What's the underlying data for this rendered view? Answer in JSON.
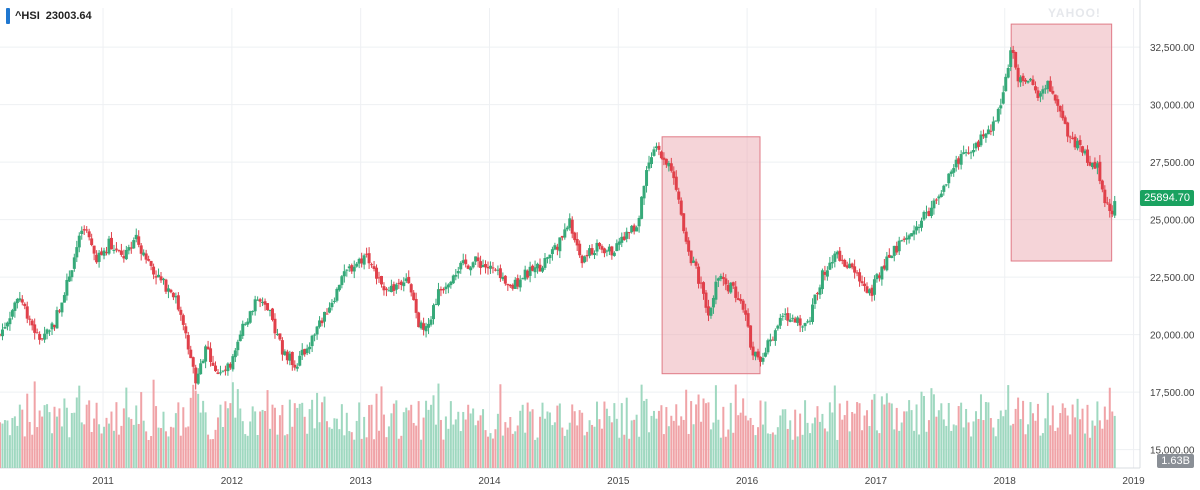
{
  "legend": {
    "symbol": "^HSI",
    "value": "23003.64",
    "color": "#1f77d0"
  },
  "current_price_label": "25894.70",
  "volume_label": "1.63B",
  "watermark": "YAHOO!",
  "colors": {
    "up": "#36a979",
    "down": "#e0404a",
    "volume_up": "#9fd8c0",
    "volume_down": "#f0a3a7",
    "highlight_fill": "#e8a0a8",
    "highlight_stroke": "#e07a86",
    "grid": "#eef0f3",
    "price_tag": "#1aa260"
  },
  "chart_data": {
    "type": "candlestick",
    "series_name": "^HSI",
    "ylim": [
      14200,
      34200
    ],
    "y_ticks": [
      15000,
      17500,
      20000,
      22500,
      25000,
      27500,
      30000,
      32500
    ],
    "y_tick_labels": [
      "15,000.00",
      "17,500.00",
      "20,000.00",
      "22,500.00",
      "25,000.00",
      "27,500.00",
      "30,000.00",
      "32,500.00"
    ],
    "xlim": [
      2010.2,
      2019.05
    ],
    "x_ticks": [
      2011,
      2012,
      2013,
      2014,
      2015,
      2016,
      2017,
      2018,
      2019
    ],
    "x_tick_labels": [
      "2011",
      "2012",
      "2013",
      "2014",
      "2015",
      "2016",
      "2017",
      "2018",
      "2019"
    ],
    "price_path": [
      [
        2010.2,
        20000
      ],
      [
        2010.35,
        21700
      ],
      [
        2010.5,
        19800
      ],
      [
        2010.62,
        20500
      ],
      [
        2010.75,
        22800
      ],
      [
        2010.85,
        24800
      ],
      [
        2010.95,
        23200
      ],
      [
        2011.05,
        24000
      ],
      [
        2011.15,
        23300
      ],
      [
        2011.25,
        24200
      ],
      [
        2011.35,
        23200
      ],
      [
        2011.45,
        22300
      ],
      [
        2011.55,
        21800
      ],
      [
        2011.62,
        20500
      ],
      [
        2011.72,
        18000
      ],
      [
        2011.8,
        19500
      ],
      [
        2011.9,
        18200
      ],
      [
        2012.0,
        18700
      ],
      [
        2012.1,
        20500
      ],
      [
        2012.2,
        21500
      ],
      [
        2012.3,
        20800
      ],
      [
        2012.4,
        19200
      ],
      [
        2012.5,
        18700
      ],
      [
        2012.62,
        19800
      ],
      [
        2012.75,
        21200
      ],
      [
        2012.9,
        22800
      ],
      [
        2013.05,
        23500
      ],
      [
        2013.15,
        22200
      ],
      [
        2013.25,
        22000
      ],
      [
        2013.35,
        22600
      ],
      [
        2013.45,
        20500
      ],
      [
        2013.5,
        20000
      ],
      [
        2013.6,
        21800
      ],
      [
        2013.75,
        22900
      ],
      [
        2013.9,
        23200
      ],
      [
        2014.05,
        22700
      ],
      [
        2014.15,
        21900
      ],
      [
        2014.25,
        22500
      ],
      [
        2014.4,
        23000
      ],
      [
        2014.55,
        24100
      ],
      [
        2014.62,
        24900
      ],
      [
        2014.72,
        23300
      ],
      [
        2014.85,
        23800
      ],
      [
        2014.95,
        23600
      ],
      [
        2015.05,
        24300
      ],
      [
        2015.15,
        24800
      ],
      [
        2015.23,
        27600
      ],
      [
        2015.3,
        28000
      ],
      [
        2015.38,
        27500
      ],
      [
        2015.45,
        26500
      ],
      [
        2015.52,
        24000
      ],
      [
        2015.62,
        22500
      ],
      [
        2015.7,
        21000
      ],
      [
        2015.78,
        22500
      ],
      [
        2015.88,
        22000
      ],
      [
        2015.96,
        21500
      ],
      [
        2016.03,
        19500
      ],
      [
        2016.1,
        18800
      ],
      [
        2016.18,
        19800
      ],
      [
        2016.28,
        20800
      ],
      [
        2016.38,
        20500
      ],
      [
        2016.48,
        20700
      ],
      [
        2016.58,
        22500
      ],
      [
        2016.68,
        23600
      ],
      [
        2016.78,
        23000
      ],
      [
        2016.88,
        22400
      ],
      [
        2016.96,
        21800
      ],
      [
        2017.05,
        23000
      ],
      [
        2017.15,
        23700
      ],
      [
        2017.25,
        24200
      ],
      [
        2017.4,
        25300
      ],
      [
        2017.55,
        26600
      ],
      [
        2017.65,
        27700
      ],
      [
        2017.78,
        28300
      ],
      [
        2017.88,
        28800
      ],
      [
        2017.96,
        29700
      ],
      [
        2018.05,
        32500
      ],
      [
        2018.1,
        31000
      ],
      [
        2018.18,
        31200
      ],
      [
        2018.26,
        30100
      ],
      [
        2018.34,
        30900
      ],
      [
        2018.42,
        29800
      ],
      [
        2018.5,
        28600
      ],
      [
        2018.58,
        28100
      ],
      [
        2018.66,
        27600
      ],
      [
        2018.72,
        27200
      ],
      [
        2018.78,
        25900
      ],
      [
        2018.83,
        25300
      ],
      [
        2018.86,
        25894.7
      ]
    ],
    "highlights": [
      {
        "x0": 2015.34,
        "x1": 2016.1,
        "y0": 18300,
        "y1": 28600
      },
      {
        "x0": 2018.05,
        "x1": 2018.83,
        "y0": 23200,
        "y1": 33500
      }
    ],
    "last_price": 25894.7,
    "last_volume": "1.63B"
  }
}
